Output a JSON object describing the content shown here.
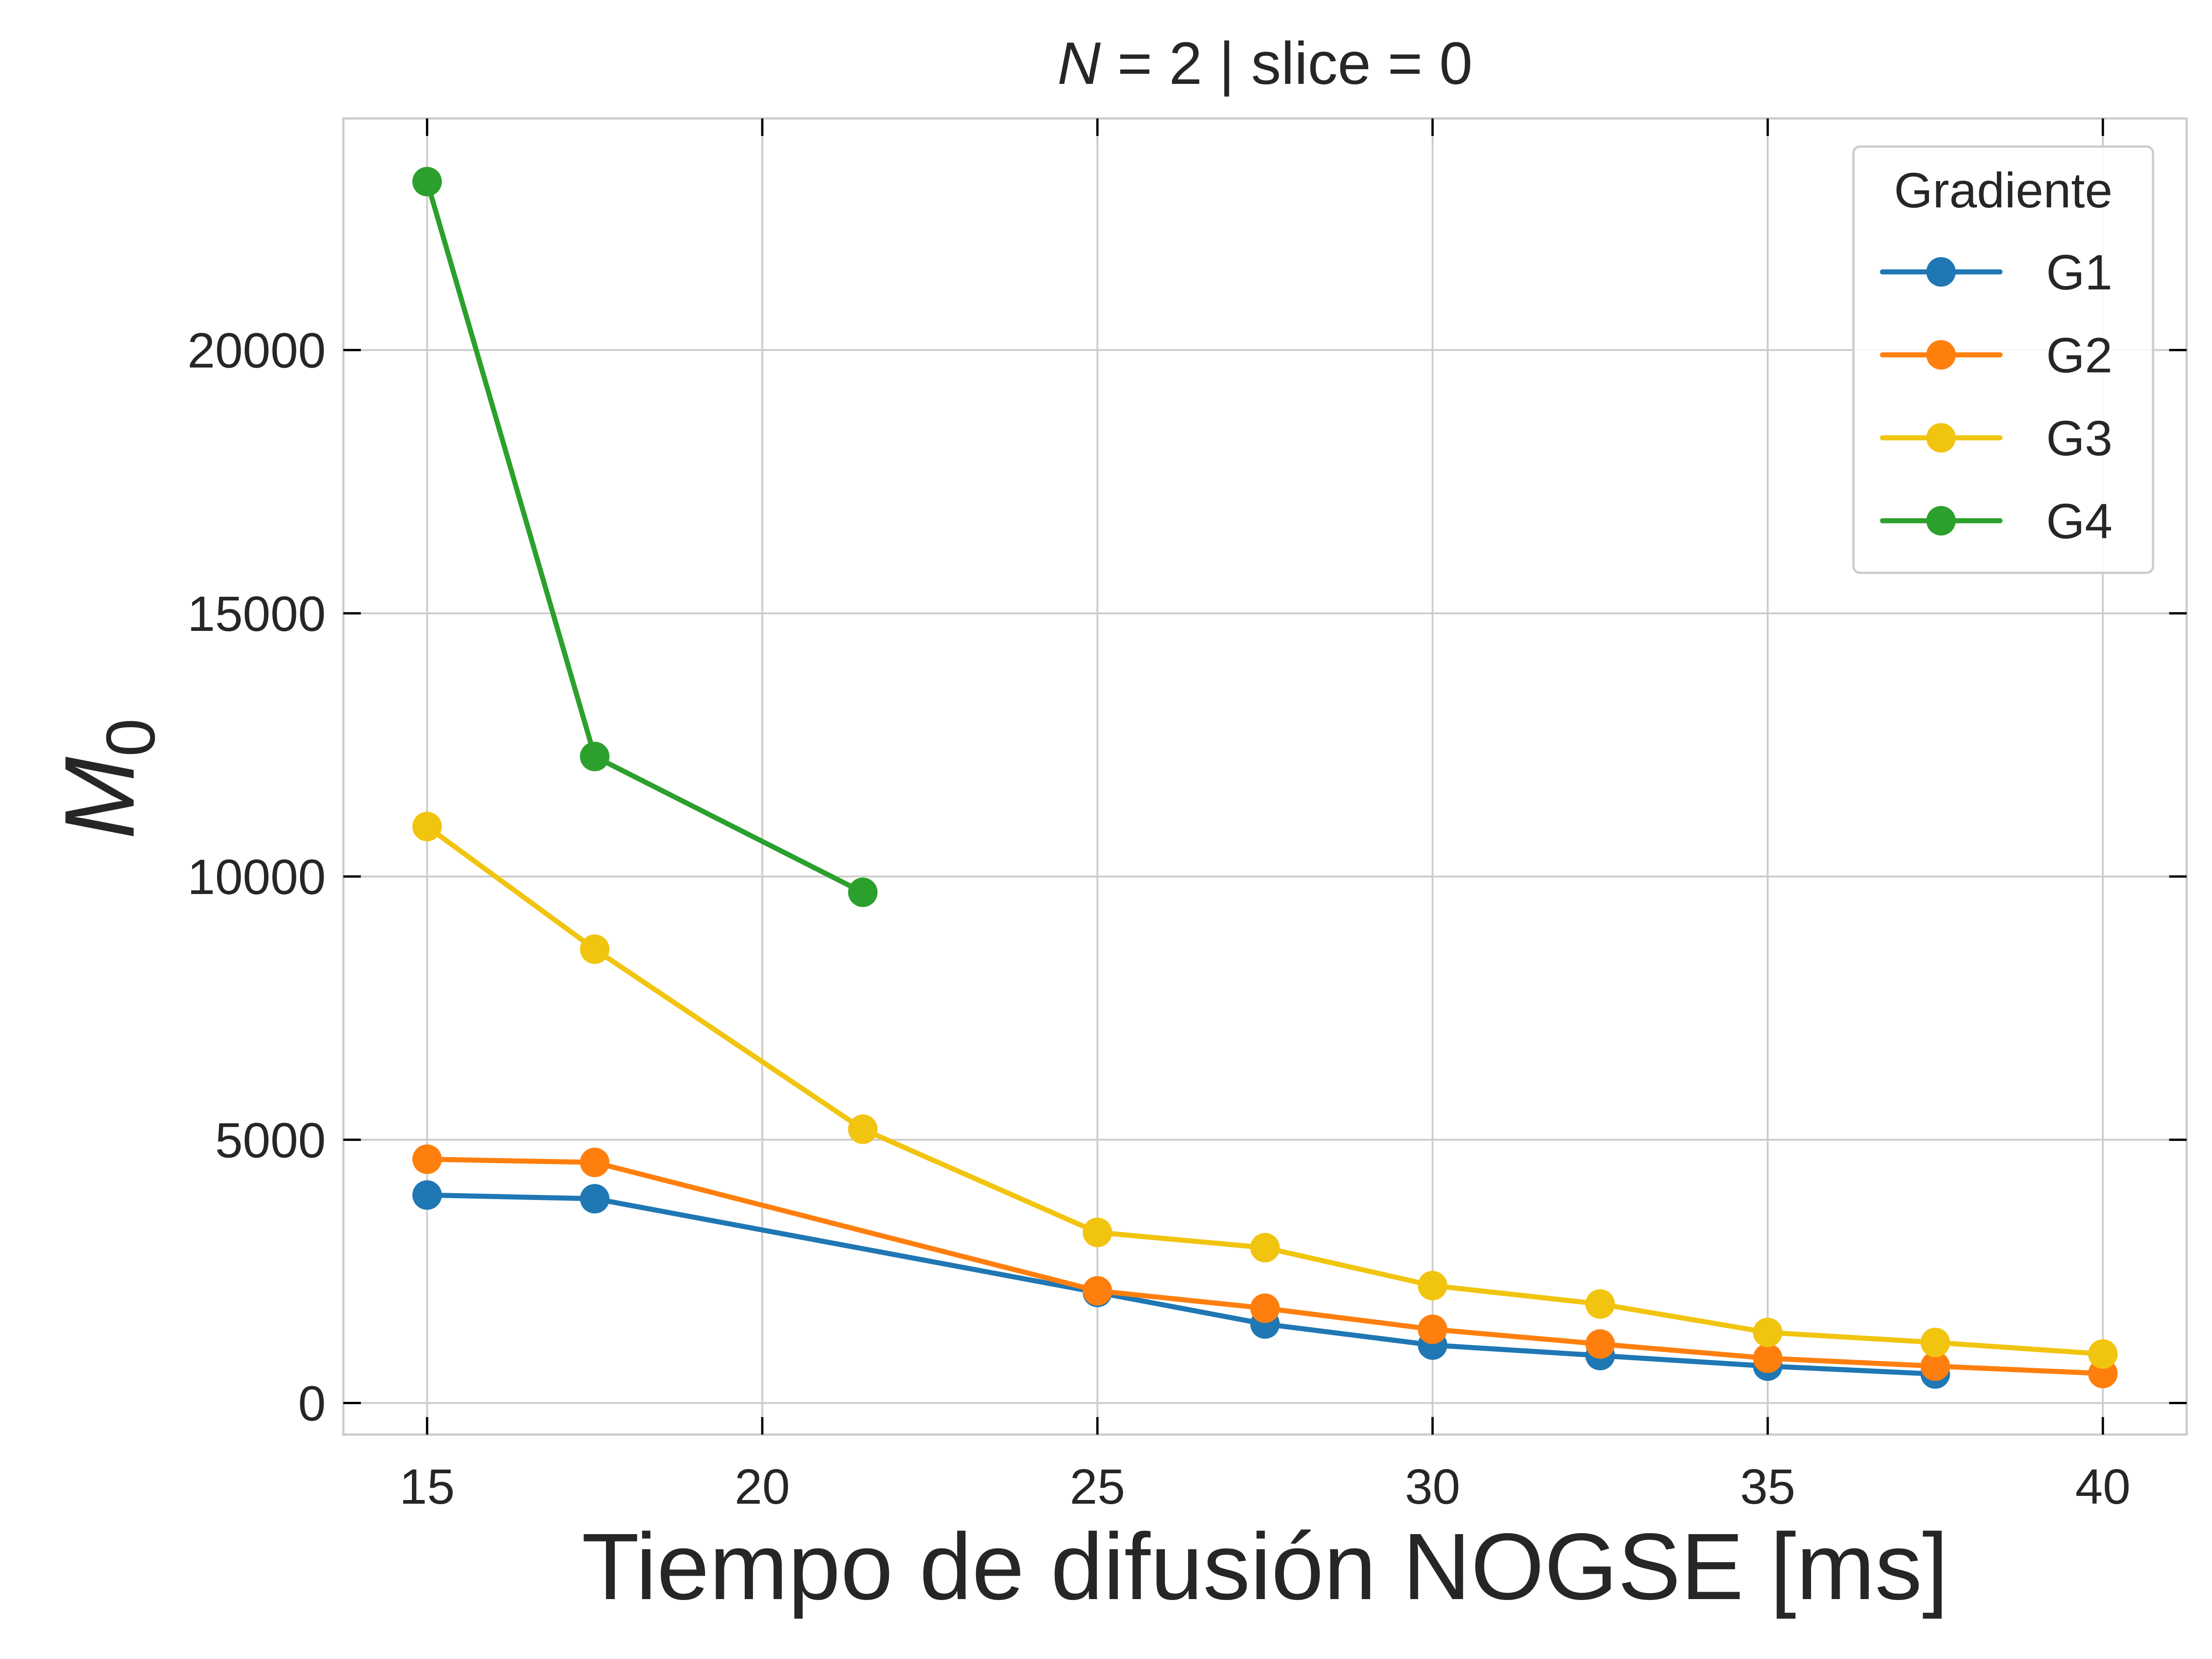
{
  "chart_data": {
    "type": "line",
    "title": "N = 2 | slice = 0",
    "title_parts": {
      "var": "N",
      "rest": " = 2 | slice = 0"
    },
    "xlabel": "Tiempo de difusión NOGSE [ms]",
    "ylabel": {
      "base": "M",
      "sub": "0"
    },
    "xlim": [
      13.75,
      41.25
    ],
    "ylim": [
      -600,
      24400
    ],
    "x_ticks": [
      15,
      20,
      25,
      30,
      35,
      40
    ],
    "y_ticks": [
      0,
      5000,
      10000,
      15000,
      20000
    ],
    "grid": true,
    "legend": {
      "title": "Gradiente",
      "position": "top-right"
    },
    "series": [
      {
        "name": "G1",
        "color": "#1f77b4",
        "x": [
          15,
          17.5,
          25,
          27.5,
          30,
          32.5,
          35,
          37.5
        ],
        "y": [
          3950,
          3880,
          2100,
          1500,
          1100,
          900,
          700,
          550
        ]
      },
      {
        "name": "G2",
        "color": "#ff7f0e",
        "x": [
          15,
          17.5,
          25,
          27.5,
          30,
          32.5,
          35,
          37.5,
          40
        ],
        "y": [
          4630,
          4570,
          2130,
          1800,
          1400,
          1120,
          850,
          700,
          560
        ]
      },
      {
        "name": "G3",
        "color": "#f1c40f",
        "x": [
          15,
          17.5,
          21.5,
          25,
          27.5,
          30,
          32.5,
          35,
          37.5,
          40
        ],
        "y": [
          10950,
          8620,
          5200,
          3240,
          2950,
          2230,
          1880,
          1340,
          1150,
          930
        ]
      },
      {
        "name": "G4",
        "color": "#2ca02c",
        "x": [
          15,
          17.5,
          21.5
        ],
        "y": [
          23200,
          12280,
          9700
        ]
      }
    ]
  }
}
